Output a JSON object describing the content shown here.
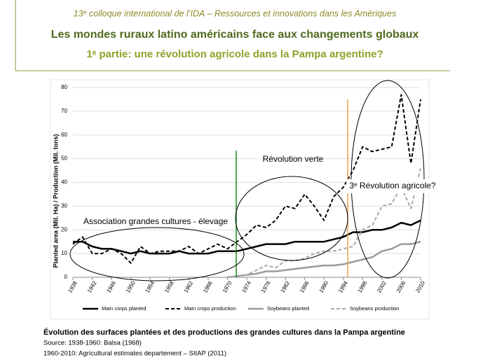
{
  "header": {
    "line1": "13ᵉ colloque international de l’IDA – Ressources et innovations dans les Amériques",
    "title": "Les mondes ruraux latino américains face aux changements globaux",
    "subtitle": "1ᵉ partie: une révolution agricole dans la Pampa argentine?"
  },
  "chart_data": {
    "type": "line",
    "y_label": "Planted area (Mil. Ha) / Production (Mil. tons)",
    "annotations": [
      "Association grandes cultures - élevage",
      "Révolution verte",
      "3ᵉ Révolution agricole?"
    ],
    "x": [
      1938,
      1940,
      1942,
      1944,
      1946,
      1948,
      1950,
      1952,
      1954,
      1956,
      1958,
      1960,
      1962,
      1964,
      1966,
      1968,
      1970,
      1972,
      1974,
      1976,
      1978,
      1980,
      1982,
      1984,
      1986,
      1988,
      1990,
      1992,
      1994,
      1996,
      1998,
      2000,
      2002,
      2004,
      2006,
      2008,
      2010
    ],
    "series": [
      {
        "name": "Main corps planted",
        "color": "#000000",
        "dash": false,
        "width": 2.5,
        "values": [
          15,
          15,
          13,
          12,
          12,
          11,
          10,
          11,
          10,
          10,
          10,
          11,
          10,
          10,
          10,
          11,
          11,
          11,
          12,
          13,
          14,
          14,
          14,
          15,
          15,
          15,
          15,
          16,
          17,
          19,
          19,
          20,
          20,
          21,
          23,
          22,
          24
        ]
      },
      {
        "name": "Main crops production",
        "color": "#000000",
        "dash": true,
        "width": 2,
        "values": [
          14,
          17,
          10,
          10,
          12,
          10,
          6,
          13,
          10,
          11,
          11,
          11,
          13,
          10,
          12,
          14,
          12,
          15,
          18,
          22,
          21,
          24,
          30,
          29,
          35,
          30,
          24,
          34,
          38,
          45,
          55,
          53,
          54,
          55,
          77,
          48,
          75
        ]
      },
      {
        "name": "Soybeans planted",
        "color": "#9a9a9a",
        "dash": false,
        "width": 2.5,
        "values": [
          null,
          null,
          null,
          null,
          null,
          null,
          null,
          null,
          null,
          null,
          null,
          null,
          null,
          null,
          null,
          null,
          0,
          0.5,
          1,
          1.5,
          2.5,
          2.5,
          3,
          3.5,
          4,
          4.5,
          5,
          5,
          5.5,
          6.5,
          7.5,
          8.5,
          11,
          12,
          14,
          14,
          15
        ]
      },
      {
        "name": "Soybeans production",
        "color": "#a8a8a8",
        "dash": true,
        "width": 2,
        "values": [
          null,
          null,
          null,
          null,
          null,
          null,
          null,
          null,
          null,
          null,
          null,
          null,
          null,
          null,
          null,
          null,
          0,
          0.5,
          1,
          3,
          5,
          4,
          7,
          7,
          8,
          10,
          11,
          11,
          12,
          13,
          20,
          22,
          30,
          31,
          38,
          29,
          46
        ]
      }
    ],
    "xlim": [
      1938,
      2010
    ],
    "xticks": [
      1938,
      1942,
      1946,
      1950,
      1954,
      1958,
      1962,
      1966,
      1970,
      1974,
      1978,
      1982,
      1986,
      1990,
      1994,
      1998,
      2002,
      2006,
      2010
    ],
    "ylim": [
      0,
      80
    ],
    "yticks": [
      0,
      10,
      20,
      30,
      40,
      50,
      60,
      70,
      80
    ],
    "grid": true
  },
  "caption": {
    "title": "Évolution des surfaces plantées et des productions des grandes cultures dans la Pampa argentine",
    "source1": "Source: 1938-1960: Balsa (1968)",
    "source2": "1960-2010: Agricultural estimates departement – SIIAP (2011)"
  }
}
